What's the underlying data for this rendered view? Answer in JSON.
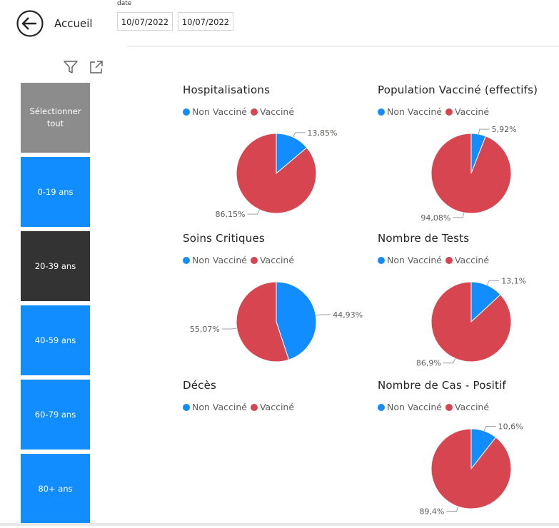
{
  "nav": {
    "back_label": "Accueil"
  },
  "date_filter": {
    "caption": "date",
    "start": "10/07/2022",
    "end": "10/07/2022"
  },
  "toolbar": {
    "filter_icon": "filter-icon",
    "focus_icon": "focus-mode-icon"
  },
  "age_tiles": [
    {
      "label": "Sélectionner tout",
      "state": "neutral"
    },
    {
      "label": "0-19 ans",
      "state": "unselected"
    },
    {
      "label": "20-39 ans",
      "state": "selected"
    },
    {
      "label": "40-59 ans",
      "state": "unselected"
    },
    {
      "label": "60-79 ans",
      "state": "unselected"
    },
    {
      "label": "80+ ans",
      "state": "unselected"
    }
  ],
  "colors": {
    "non_vaccine": "#118dff",
    "vaccine": "#d64550",
    "selected_tile": "#333333",
    "tile": "#118dff",
    "select_all_tile": "#8c8c8c"
  },
  "chart_data": [
    {
      "type": "pie",
      "title": "Hospitalisations",
      "legend": [
        "Non Vacciné",
        "Vacciné"
      ],
      "slices": [
        {
          "name": "Non Vacciné",
          "value": 13.85,
          "label": "13,85%"
        },
        {
          "name": "Vacciné",
          "value": 86.15,
          "label": "86,15%"
        }
      ]
    },
    {
      "type": "pie",
      "title": "Population Vacciné (effectifs)",
      "legend": [
        "Non Vacciné",
        "Vacciné"
      ],
      "slices": [
        {
          "name": "Non Vacciné",
          "value": 5.92,
          "label": "5,92%"
        },
        {
          "name": "Vacciné",
          "value": 94.08,
          "label": "94,08%"
        }
      ]
    },
    {
      "type": "pie",
      "title": "Soins Critiques",
      "legend": [
        "Non Vacciné",
        "Vacciné"
      ],
      "slices": [
        {
          "name": "Non Vacciné",
          "value": 44.93,
          "label": "44,93%"
        },
        {
          "name": "Vacciné",
          "value": 55.07,
          "label": "55,07%"
        }
      ]
    },
    {
      "type": "pie",
      "title": "Nombre de Tests",
      "legend": [
        "Non Vacciné",
        "Vacciné"
      ],
      "slices": [
        {
          "name": "Non Vacciné",
          "value": 13.1,
          "label": "13,1%"
        },
        {
          "name": "Vacciné",
          "value": 86.9,
          "label": "86,9%"
        }
      ]
    },
    {
      "type": "pie",
      "title": "Décès",
      "legend": [
        "Non Vacciné",
        "Vacciné"
      ],
      "slices": []
    },
    {
      "type": "pie",
      "title": "Nombre de Cas - Positif",
      "legend": [
        "Non Vacciné",
        "Vacciné"
      ],
      "slices": [
        {
          "name": "Non Vacciné",
          "value": 10.6,
          "label": "10,6%"
        },
        {
          "name": "Vacciné",
          "value": 89.4,
          "label": "89,4%"
        }
      ]
    }
  ]
}
